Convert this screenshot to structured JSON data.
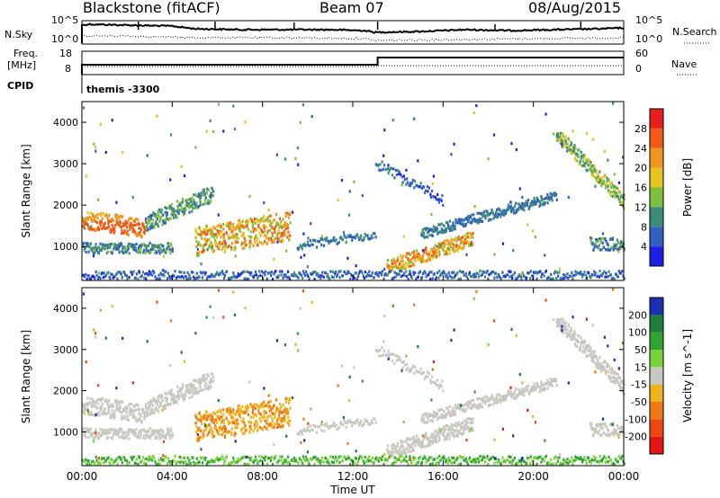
{
  "header": {
    "station": "Blackstone (fitACF)",
    "beam": "Beam 07",
    "date": "08/Aug/2015"
  },
  "top_panels": {
    "nsky_label": "N.Sky",
    "nsearch_label": "N.Search",
    "nsky_tick_high": "10^5",
    "nsky_tick_low": "10^0",
    "freq_label_line1": "Freq.",
    "freq_label_line2": "[MHz]",
    "freq_tick_high": "18",
    "freq_tick_low": "8",
    "nave_label": "Nave",
    "nave_tick_high": "60",
    "nave_tick_low": "0",
    "cpid_label": "CPID",
    "cpid_value": "themis -3300"
  },
  "chart_data": [
    {
      "type": "heatmap",
      "name": "power",
      "ylabel": "Slant Range [km]",
      "ylim": [
        180,
        4500
      ],
      "yticks": [
        "1000",
        "2000",
        "3000",
        "4000"
      ],
      "colorbar_label": "Power [dB]",
      "colorbar_ticks": [
        "4",
        "8",
        "12",
        "16",
        "20",
        "24",
        "28"
      ],
      "colorbar_colors": [
        "#1e1ee6",
        "#2f5fbf",
        "#3c8c7a",
        "#7fbf3f",
        "#e6c31e",
        "#f0961e",
        "#f05a14",
        "#e61e1e"
      ]
    },
    {
      "type": "heatmap",
      "name": "velocity",
      "ylabel": "Slant Range [km]",
      "ylim": [
        180,
        4500
      ],
      "yticks": [
        "1000",
        "2000",
        "3000",
        "4000"
      ],
      "colorbar_label": "Velocity [m s^-1]",
      "colorbar_ticks": [
        "200",
        "100",
        "50",
        "15",
        "-15",
        "-50",
        "-100",
        "-200"
      ],
      "colorbar_colors": [
        "#1a2fb4",
        "#1d7d3a",
        "#2fa52f",
        "#78d23c",
        "#c8c8c0",
        "#f0b41e",
        "#f07814",
        "#f04614",
        "#e61414"
      ]
    }
  ],
  "x_axis": {
    "label": "Time UT",
    "ticks": [
      "00:00",
      "04:00",
      "08:00",
      "12:00",
      "16:00",
      "20:00",
      "00:00"
    ],
    "range_hours": [
      0,
      24
    ]
  },
  "colors": {
    "ground_scatter": "#c8c8c0"
  }
}
